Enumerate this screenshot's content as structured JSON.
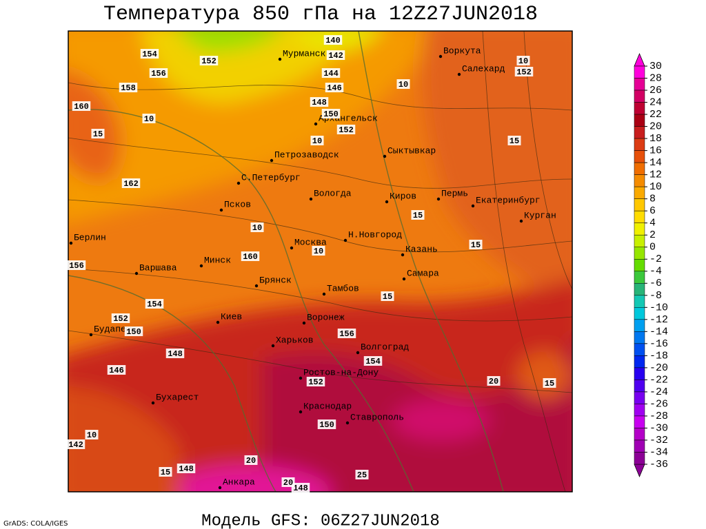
{
  "title": "Температура 850 гПа на 12Z27JUN2018",
  "footer": "Модель GFS: 06Z27JUN2018",
  "credit": "GrADS: COLA/IGES",
  "cities": [
    "Мурманск",
    "Воркута",
    "Салехард",
    "Архангельск",
    "Сыктывкар",
    "Петрозаводск",
    "С.Петербург",
    "Вологда",
    "Киров",
    "Пермь",
    "Екатеринбург",
    "Курган",
    "Псков",
    "Берлин",
    "Москва",
    "Н.Новгород",
    "Казань",
    "Варшава",
    "Минск",
    "Самара",
    "Брянск",
    "Тамбов",
    "Киев",
    "Воронеж",
    "Будапешт",
    "Харьков",
    "Волгоград",
    "Ростов-на-Дону",
    "Бухарест",
    "Краснодар",
    "Ставрополь",
    "Анкара"
  ],
  "contour_labels": [
    "140",
    "154",
    "152",
    "156",
    "158",
    "160",
    "142",
    "144",
    "146",
    "148",
    "150",
    "152",
    "162",
    "160",
    "156",
    "154",
    "152",
    "150",
    "148",
    "146",
    "156",
    "154",
    "152",
    "150",
    "148",
    "148",
    "142",
    "152",
    "10",
    "10",
    "10",
    "15",
    "10",
    "15",
    "15",
    "10",
    "10",
    "15",
    "15",
    "20",
    "15",
    "10",
    "20",
    "15",
    "25",
    "20"
  ],
  "colorbar": {
    "levels": [
      30,
      28,
      26,
      24,
      22,
      20,
      18,
      16,
      14,
      12,
      10,
      8,
      6,
      4,
      2,
      0,
      -2,
      -4,
      -6,
      -8,
      -10,
      -12,
      -14,
      -16,
      -18,
      -20,
      -22,
      -24,
      -26,
      -28,
      -30,
      -32,
      -34,
      -36
    ],
    "colors": [
      "#ff00dc",
      "#e60096",
      "#d20064",
      "#be0032",
      "#aa0014",
      "#c81e1e",
      "#dc3c14",
      "#e6500a",
      "#f06e00",
      "#f58c00",
      "#faaa00",
      "#ffc800",
      "#ffdc00",
      "#f0f000",
      "#c8f000",
      "#96e600",
      "#64dc00",
      "#3cc83c",
      "#28b478",
      "#14c8b4",
      "#00c8dc",
      "#00a0f0",
      "#0078f0",
      "#0050f0",
      "#0028f0",
      "#2800f0",
      "#5000f0",
      "#7800f0",
      "#a000f0",
      "#c800f0",
      "#b400c8",
      "#a000b4",
      "#8c0096"
    ]
  }
}
